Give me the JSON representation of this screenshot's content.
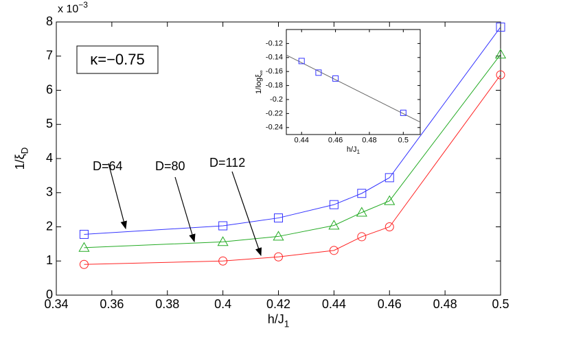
{
  "chart_data": [
    {
      "type": "line",
      "title_box": "κ=−0.75",
      "multiplier": "x 10",
      "multiplier_exponent": "−3",
      "ylabel": "1/ξ",
      "ylabel_subscript": "D",
      "xlabel": "h/J",
      "xlabel_subscript": "1",
      "x": [
        0.35,
        0.4,
        0.42,
        0.44,
        0.45,
        0.46,
        0.5
      ],
      "series": [
        {
          "color": "#3333ff",
          "marker": "square",
          "values": [
            1.78,
            2.03,
            2.26,
            2.65,
            2.98,
            3.44,
            7.85
          ]
        },
        {
          "color": "#22aa22",
          "marker": "triangle",
          "values": [
            1.39,
            1.56,
            1.72,
            2.04,
            2.42,
            2.76,
            7.05
          ]
        },
        {
          "color": "#ff2222",
          "marker": "circle",
          "values": [
            0.9,
            1.0,
            1.12,
            1.31,
            1.71,
            2.0,
            6.45
          ]
        }
      ],
      "annotations": [
        "D=64",
        "D=80",
        "D=112"
      ],
      "xlim": [
        0.34,
        0.5
      ],
      "xticks": [
        0.34,
        0.36,
        0.38,
        0.4,
        0.42,
        0.44,
        0.46,
        0.48,
        0.5
      ],
      "ylim": [
        0,
        8
      ],
      "yticks": [
        0,
        1,
        2,
        3,
        4,
        5,
        6,
        7,
        8
      ]
    },
    {
      "type": "line",
      "ylabel": "1/logξ",
      "ylabel_subscript": "∞",
      "xlabel": "h/J",
      "xlabel_subscript": "1",
      "x": [
        0.44,
        0.45,
        0.46,
        0.5
      ],
      "series": [
        {
          "color": "#3333ff",
          "marker": "square",
          "values": [
            -0.145,
            -0.1616,
            -0.17,
            -0.219
          ]
        }
      ],
      "fit": {
        "color": "#666666",
        "x": [
          0.431,
          0.51
        ],
        "values": [
          -0.1365,
          -0.2323
        ]
      },
      "xlim": [
        0.431,
        0.51
      ],
      "xticks": [
        0.44,
        0.46,
        0.48,
        0.5
      ],
      "ylim": [
        -0.25,
        -0.1
      ],
      "yticks": [
        -0.12,
        -0.14,
        -0.16,
        -0.18,
        -0.2,
        -0.22,
        -0.24
      ]
    }
  ]
}
